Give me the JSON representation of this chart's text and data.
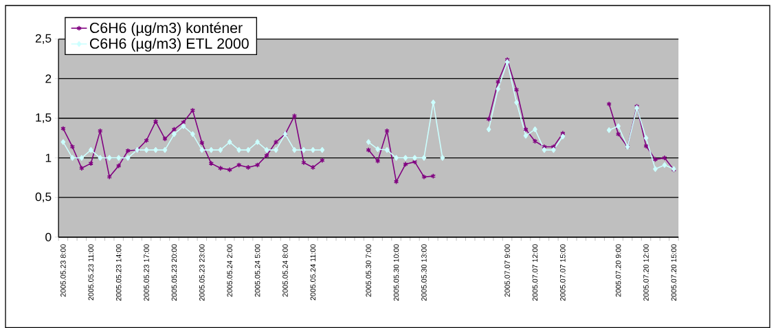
{
  "chart_data": {
    "type": "line",
    "categories": [
      "2005.05.23 8:00",
      null,
      null,
      "2005.05.23 11:00",
      null,
      null,
      "2005.05.23 14:00",
      null,
      null,
      "2005.05.23 17:00",
      null,
      null,
      "2005.05.23 20:00",
      null,
      null,
      "2005.05.23 23:00",
      null,
      null,
      "2005.05.24 2:00",
      null,
      null,
      "2005.05.24 5:00",
      null,
      null,
      "2005.05.24 8:00",
      null,
      null,
      "2005.05.24 11:00",
      null,
      null,
      null,
      null,
      null,
      "2005.05.30 7:00",
      null,
      null,
      "2005.05.30 10:00",
      null,
      null,
      "2005.05.30 13:00",
      null,
      null,
      null,
      null,
      null,
      null,
      null,
      null,
      "2005.07.07 9:00",
      null,
      null,
      "2005.07.07 12:00",
      null,
      null,
      "2005.07.07 15:00",
      null,
      null,
      null,
      null,
      null,
      "2005.07.20 9:00",
      null,
      null,
      "2005.07.20 12:00",
      null,
      null,
      "2005.07.20 15:00"
    ],
    "series": [
      {
        "name": "C6H6 (µg/m3) konténer",
        "color": "#800080",
        "marker": "cross",
        "values": [
          1.37,
          1.14,
          0.87,
          0.93,
          1.34,
          0.76,
          0.9,
          1.09,
          1.1,
          1.22,
          1.46,
          1.24,
          1.36,
          1.45,
          1.6,
          1.19,
          0.93,
          0.87,
          0.85,
          0.91,
          0.88,
          0.91,
          1.03,
          1.2,
          1.3,
          1.53,
          0.94,
          0.88,
          0.97,
          null,
          null,
          null,
          null,
          1.1,
          0.96,
          1.34,
          0.7,
          0.92,
          0.95,
          0.76,
          0.77,
          null,
          null,
          null,
          null,
          null,
          1.49,
          1.96,
          2.24,
          1.86,
          1.36,
          1.21,
          1.14,
          1.14,
          1.31,
          null,
          null,
          null,
          null,
          1.68,
          1.3,
          1.14,
          1.65,
          1.15,
          0.98,
          1.0,
          0.85
        ]
      },
      {
        "name": "C6H6 (µg/m3) ETL 2000",
        "color": "#ccffff",
        "marker": "diamond",
        "values": [
          1.2,
          1.0,
          1.0,
          1.1,
          1.0,
          1.0,
          1.0,
          1.0,
          1.1,
          1.1,
          1.1,
          1.1,
          1.3,
          1.4,
          1.3,
          1.1,
          1.1,
          1.1,
          1.2,
          1.1,
          1.1,
          1.2,
          1.1,
          1.1,
          1.3,
          1.1,
          1.1,
          1.1,
          1.1,
          null,
          null,
          null,
          null,
          1.2,
          1.11,
          1.1,
          1.0,
          1.0,
          1.0,
          1.0,
          1.7,
          1.0,
          null,
          null,
          null,
          null,
          1.36,
          1.87,
          2.21,
          1.7,
          1.28,
          1.36,
          1.1,
          1.1,
          1.27,
          null,
          null,
          null,
          null,
          1.35,
          1.4,
          1.14,
          1.63,
          1.25,
          0.86,
          0.91,
          0.86
        ]
      }
    ],
    "ylim": [
      0,
      2.5
    ],
    "yticks": [
      0,
      {
        "value": 0.5,
        "label": "0,5"
      },
      1,
      {
        "value": 1.5,
        "label": "1,5"
      },
      2,
      {
        "value": 2.5,
        "label": "2,5"
      }
    ],
    "grid": "y",
    "legend": "top left"
  }
}
